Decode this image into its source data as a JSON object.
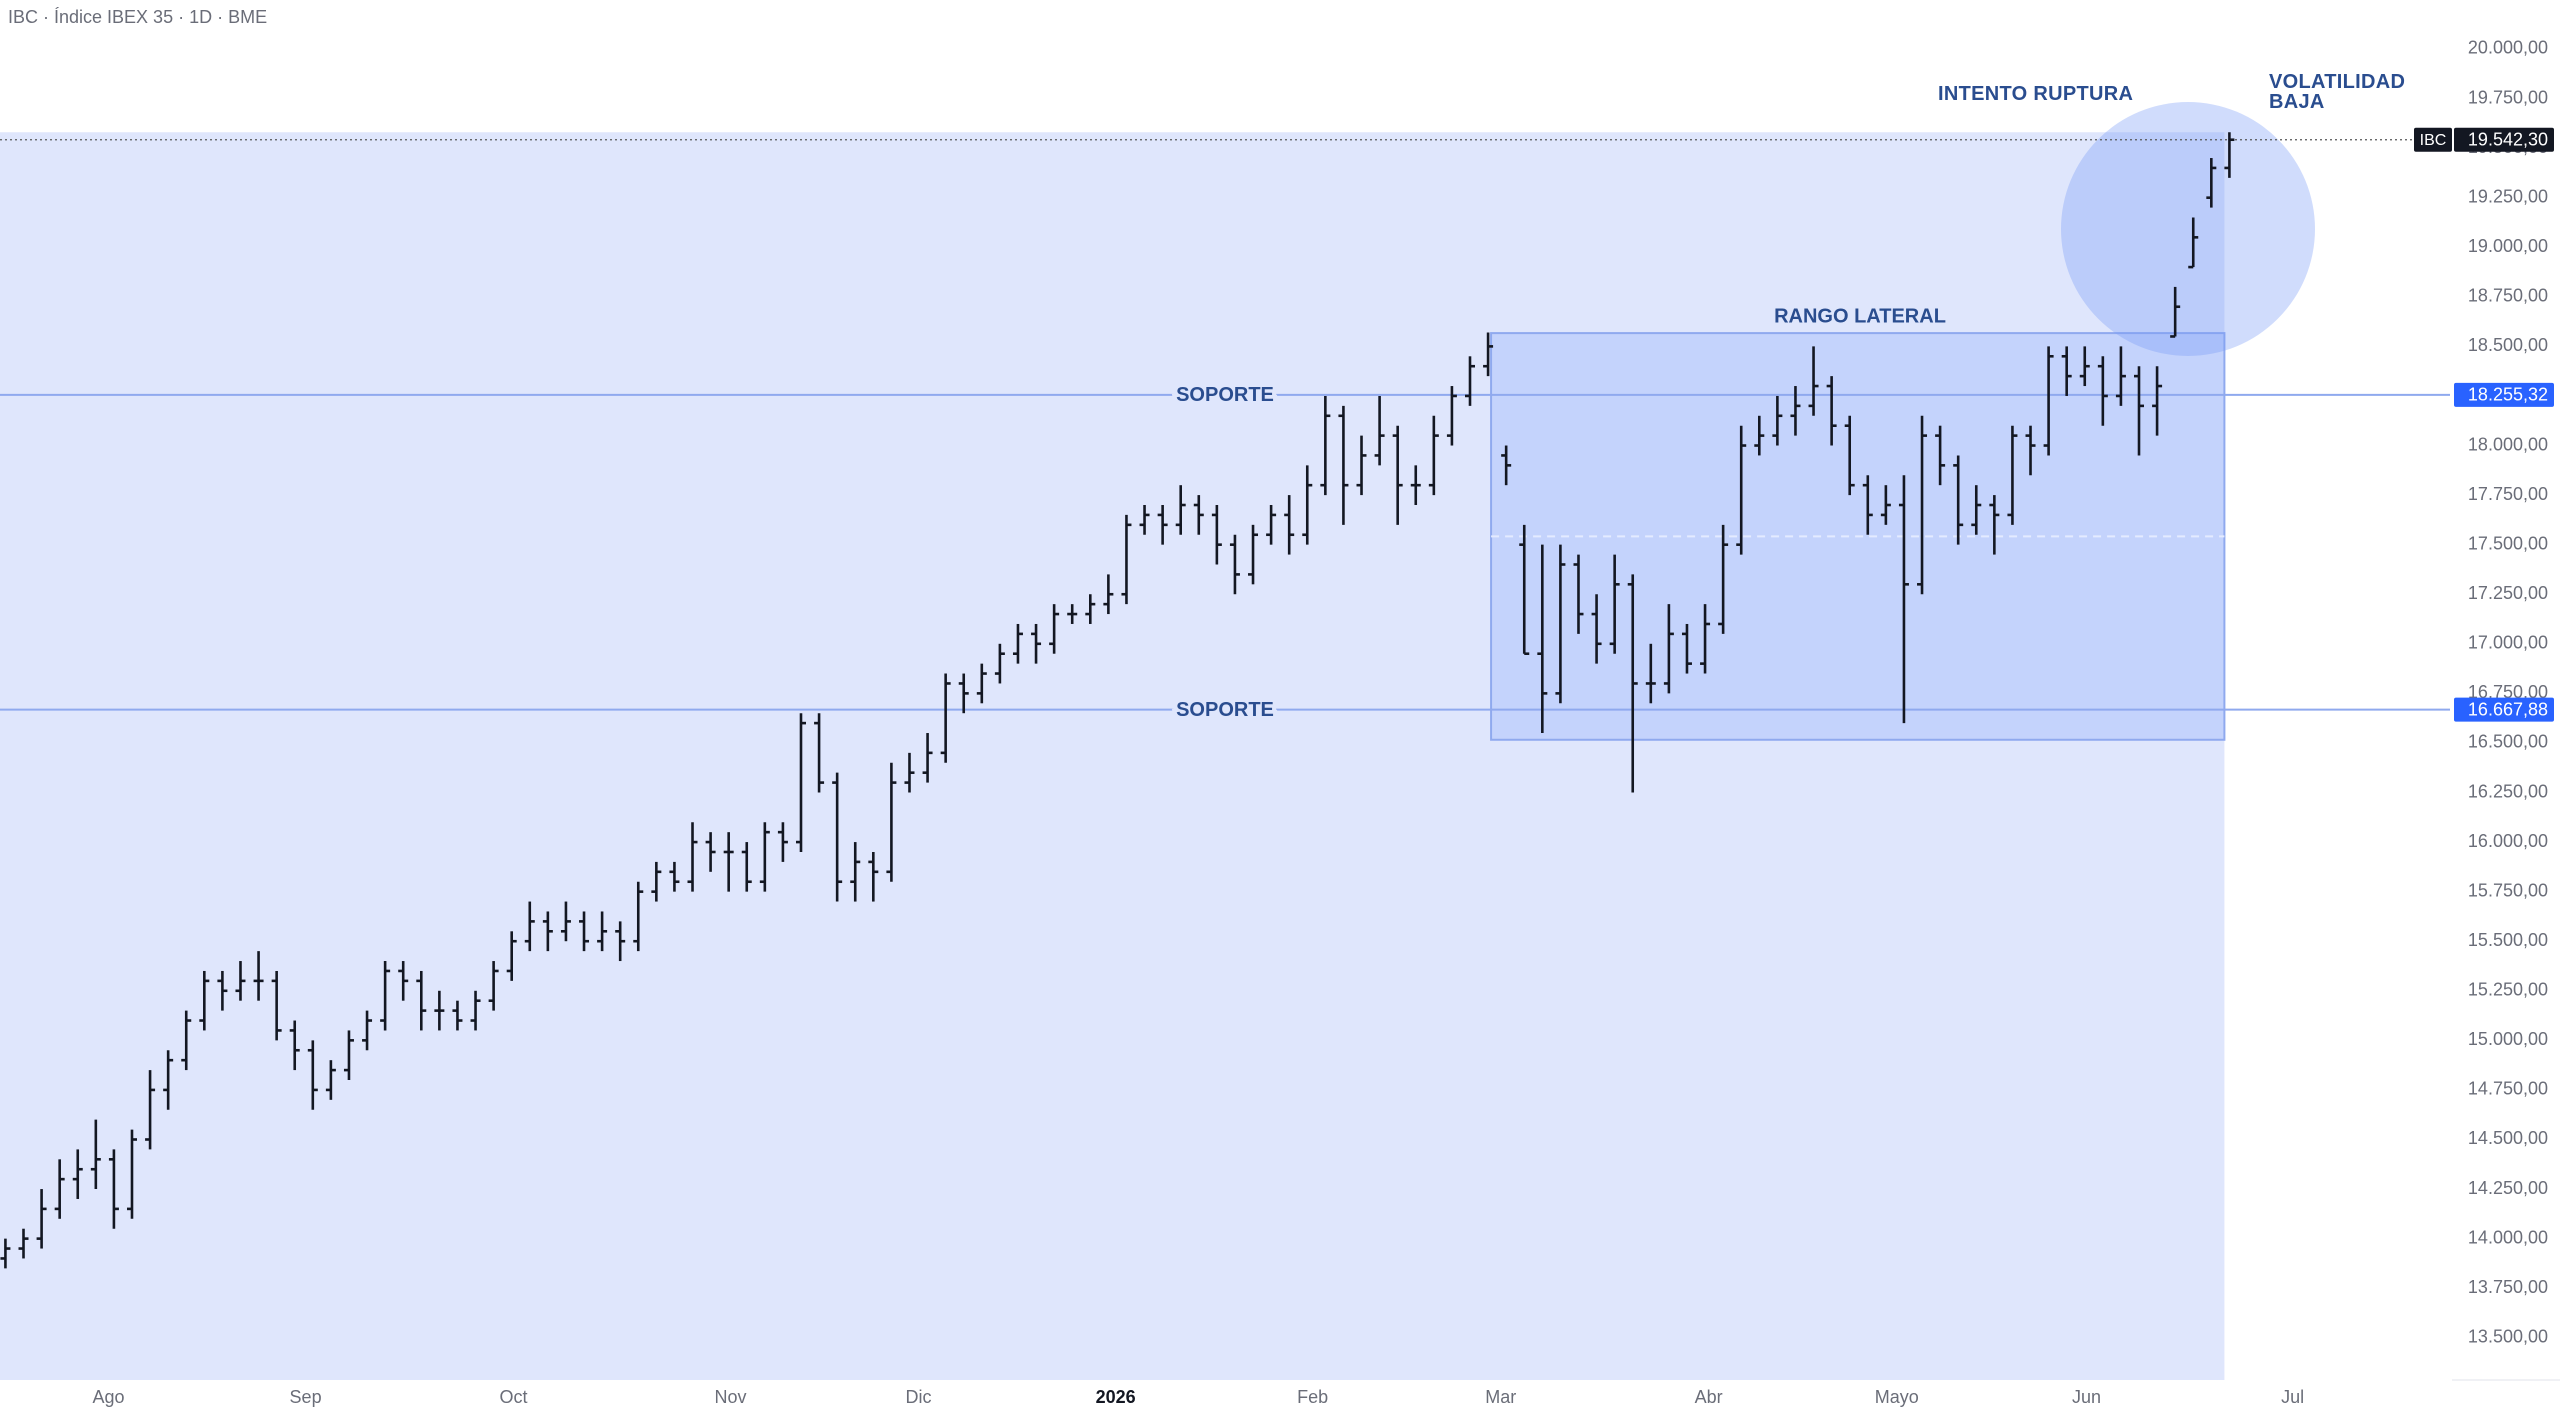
{
  "chart_data": {
    "type": "ohlc",
    "title": "IBC · Índice IBEX 35 · 1D · BME",
    "symbol": "IBC",
    "xlim": [
      -0.3,
      135.2
    ],
    "xticks": [
      {
        "value": 5.7,
        "label": "Ago"
      },
      {
        "value": 16.6,
        "label": "Sep"
      },
      {
        "value": 28.1,
        "label": "Oct"
      },
      {
        "value": 40.1,
        "label": "Nov"
      },
      {
        "value": 50.5,
        "label": "Dic"
      },
      {
        "value": 61.4,
        "label": "2026"
      },
      {
        "value": 72.3,
        "label": "Feb"
      },
      {
        "value": 82.7,
        "label": "Mar"
      },
      {
        "value": 94.2,
        "label": "Abr"
      },
      {
        "value": 104.6,
        "label": "Mayo"
      },
      {
        "value": 115.1,
        "label": "Jun"
      },
      {
        "value": 126.5,
        "label": "Jul"
      }
    ],
    "ylim": [
      13287,
      20247
    ],
    "yticks": [
      {
        "value": 13500,
        "label": "13.500,00"
      },
      {
        "value": 13750,
        "label": "13.750,00"
      },
      {
        "value": 14000,
        "label": "14.000,00"
      },
      {
        "value": 14250,
        "label": "14.250,00"
      },
      {
        "value": 14500,
        "label": "14.500,00"
      },
      {
        "value": 14750,
        "label": "14.750,00"
      },
      {
        "value": 15000,
        "label": "15.000,00"
      },
      {
        "value": 15250,
        "label": "15.250,00"
      },
      {
        "value": 15500,
        "label": "15.500,00"
      },
      {
        "value": 15750,
        "label": "15.750,00"
      },
      {
        "value": 16000,
        "label": "16.000,00"
      },
      {
        "value": 16250,
        "label": "16.250,00"
      },
      {
        "value": 16500,
        "label": "16.500,00"
      },
      {
        "value": 16750,
        "label": "16.750,00"
      },
      {
        "value": 17000,
        "label": "17.000,00"
      },
      {
        "value": 17250,
        "label": "17.250,00"
      },
      {
        "value": 17500,
        "label": "17.500,00"
      },
      {
        "value": 17750,
        "label": "17.750,00"
      },
      {
        "value": 18000,
        "label": "18.000,00"
      },
      {
        "value": 18250,
        "label": "18.250,00"
      },
      {
        "value": 18500,
        "label": "18.500,00"
      },
      {
        "value": 18750,
        "label": "18.750,00"
      },
      {
        "value": 19000,
        "label": "19.000,00"
      },
      {
        "value": 19250,
        "label": "19.250,00"
      },
      {
        "value": 19500,
        "label": "19.500,00"
      },
      {
        "value": 19750,
        "label": "19.750,00"
      },
      {
        "value": 20000,
        "label": "20.000,00"
      }
    ],
    "color": "#131722",
    "ohlc": [
      [
        13900,
        14000,
        13850,
        13950
      ],
      [
        13950,
        14050,
        13900,
        14000
      ],
      [
        14000,
        14250,
        13950,
        14150
      ],
      [
        14150,
        14400,
        14100,
        14300
      ],
      [
        14300,
        14450,
        14200,
        14350
      ],
      [
        14350,
        14600,
        14250,
        14400
      ],
      [
        14400,
        14450,
        14050,
        14150
      ],
      [
        14150,
        14550,
        14100,
        14500
      ],
      [
        14500,
        14850,
        14450,
        14750
      ],
      [
        14750,
        14950,
        14650,
        14900
      ],
      [
        14900,
        15150,
        14850,
        15100
      ],
      [
        15100,
        15350,
        15050,
        15300
      ],
      [
        15300,
        15350,
        15150,
        15250
      ],
      [
        15250,
        15400,
        15200,
        15300
      ],
      [
        15300,
        15450,
        15200,
        15300
      ],
      [
        15300,
        15350,
        15000,
        15050
      ],
      [
        15050,
        15100,
        14850,
        14950
      ],
      [
        14950,
        15000,
        14650,
        14750
      ],
      [
        14750,
        14900,
        14700,
        14850
      ],
      [
        14850,
        15050,
        14800,
        15000
      ],
      [
        15000,
        15150,
        14950,
        15100
      ],
      [
        15100,
        15400,
        15050,
        15350
      ],
      [
        15350,
        15400,
        15200,
        15300
      ],
      [
        15300,
        15350,
        15050,
        15150
      ],
      [
        15150,
        15250,
        15050,
        15150
      ],
      [
        15150,
        15200,
        15050,
        15100
      ],
      [
        15100,
        15250,
        15050,
        15200
      ],
      [
        15200,
        15400,
        15150,
        15350
      ],
      [
        15350,
        15550,
        15300,
        15500
      ],
      [
        15500,
        15700,
        15450,
        15600
      ],
      [
        15600,
        15650,
        15450,
        15550
      ],
      [
        15550,
        15700,
        15500,
        15600
      ],
      [
        15600,
        15650,
        15450,
        15500
      ],
      [
        15500,
        15650,
        15450,
        15550
      ],
      [
        15550,
        15600,
        15400,
        15500
      ],
      [
        15500,
        15800,
        15450,
        15750
      ],
      [
        15750,
        15900,
        15700,
        15850
      ],
      [
        15850,
        15900,
        15750,
        15800
      ],
      [
        15800,
        16100,
        15750,
        16000
      ],
      [
        16000,
        16050,
        15850,
        15950
      ],
      [
        15950,
        16050,
        15750,
        15950
      ],
      [
        15950,
        16000,
        15750,
        15800
      ],
      [
        15800,
        16100,
        15750,
        16050
      ],
      [
        16050,
        16100,
        15900,
        16000
      ],
      [
        16000,
        16650,
        15950,
        16600
      ],
      [
        16600,
        16650,
        16250,
        16300
      ],
      [
        16300,
        16350,
        15700,
        15800
      ],
      [
        15800,
        16000,
        15700,
        15900
      ],
      [
        15900,
        15950,
        15700,
        15850
      ],
      [
        15850,
        16400,
        15800,
        16300
      ],
      [
        16300,
        16450,
        16250,
        16350
      ],
      [
        16350,
        16550,
        16300,
        16450
      ],
      [
        16450,
        16850,
        16400,
        16800
      ],
      [
        16800,
        16850,
        16650,
        16750
      ],
      [
        16750,
        16900,
        16700,
        16850
      ],
      [
        16850,
        17000,
        16800,
        16950
      ],
      [
        16950,
        17100,
        16900,
        17050
      ],
      [
        17050,
        17100,
        16900,
        17000
      ],
      [
        17000,
        17200,
        16950,
        17150
      ],
      [
        17150,
        17200,
        17100,
        17150
      ],
      [
        17150,
        17250,
        17100,
        17200
      ],
      [
        17200,
        17350,
        17150,
        17250
      ],
      [
        17250,
        17650,
        17200,
        17600
      ],
      [
        17600,
        17700,
        17550,
        17650
      ],
      [
        17650,
        17700,
        17500,
        17600
      ],
      [
        17600,
        17800,
        17550,
        17700
      ],
      [
        17700,
        17750,
        17550,
        17650
      ],
      [
        17650,
        17700,
        17400,
        17500
      ],
      [
        17500,
        17550,
        17250,
        17350
      ],
      [
        17350,
        17600,
        17300,
        17550
      ],
      [
        17550,
        17700,
        17500,
        17650
      ],
      [
        17650,
        17750,
        17450,
        17550
      ],
      [
        17550,
        17900,
        17500,
        17800
      ],
      [
        17800,
        18250,
        17750,
        18150
      ],
      [
        18150,
        18200,
        17600,
        17800
      ],
      [
        17800,
        18050,
        17750,
        17950
      ],
      [
        17950,
        18250,
        17900,
        18050
      ],
      [
        18050,
        18100,
        17600,
        17800
      ],
      [
        17800,
        17900,
        17700,
        17800
      ],
      [
        17800,
        18150,
        17750,
        18050
      ],
      [
        18050,
        18300,
        18000,
        18250
      ],
      [
        18250,
        18450,
        18200,
        18400
      ],
      [
        18400,
        18570,
        18350,
        18500
      ],
      [
        17950,
        18000,
        17800,
        17900
      ],
      [
        17500,
        17600,
        16950,
        16950
      ],
      [
        16950,
        17500,
        16550,
        16750
      ],
      [
        16750,
        17500,
        16700,
        17400
      ],
      [
        17400,
        17450,
        17050,
        17150
      ],
      [
        17150,
        17250,
        16900,
        17000
      ],
      [
        17000,
        17450,
        16950,
        17300
      ],
      [
        17300,
        17350,
        16250,
        16800
      ],
      [
        16800,
        17000,
        16700,
        16800
      ],
      [
        16800,
        17200,
        16750,
        17050
      ],
      [
        17050,
        17100,
        16850,
        16900
      ],
      [
        16900,
        17200,
        16850,
        17100
      ],
      [
        17100,
        17600,
        17050,
        17500
      ],
      [
        17500,
        18100,
        17450,
        18000
      ],
      [
        18000,
        18150,
        17950,
        18050
      ],
      [
        18050,
        18250,
        18000,
        18150
      ],
      [
        18150,
        18300,
        18050,
        18200
      ],
      [
        18200,
        18500,
        18150,
        18300
      ],
      [
        18300,
        18350,
        18000,
        18100
      ],
      [
        18100,
        18150,
        17750,
        17800
      ],
      [
        17800,
        17850,
        17550,
        17650
      ],
      [
        17650,
        17800,
        17600,
        17700
      ],
      [
        17700,
        17850,
        16600,
        17300
      ],
      [
        17300,
        18150,
        17250,
        18050
      ],
      [
        18050,
        18100,
        17800,
        17900
      ],
      [
        17900,
        17950,
        17500,
        17600
      ],
      [
        17600,
        17800,
        17550,
        17700
      ],
      [
        17700,
        17750,
        17450,
        17650
      ],
      [
        17650,
        18100,
        17600,
        18050
      ],
      [
        18050,
        18100,
        17850,
        18000
      ],
      [
        18000,
        18500,
        17950,
        18450
      ],
      [
        18450,
        18500,
        18250,
        18350
      ],
      [
        18350,
        18500,
        18300,
        18400
      ],
      [
        18400,
        18450,
        18100,
        18250
      ],
      [
        18250,
        18500,
        18200,
        18350
      ],
      [
        18350,
        18400,
        17950,
        18200
      ],
      [
        18200,
        18400,
        18050,
        18300
      ],
      [
        18550,
        18800,
        18550,
        18700
      ],
      [
        18900,
        19150,
        18900,
        19050
      ],
      [
        19250,
        19450,
        19200,
        19400
      ],
      [
        19400,
        19580,
        19350,
        19542.3
      ]
    ],
    "last_price": {
      "value": 19542.3,
      "label": "19.542,30"
    },
    "levels": [
      {
        "name": "SOPORTE",
        "value": 18255.32,
        "label": "18.255,32"
      },
      {
        "name": "SOPORTE",
        "value": 16667.88,
        "label": "16.667,88"
      }
    ],
    "range_box": {
      "label": "RANGO LATERAL",
      "low": 16516,
      "high": 18567
    },
    "annotations": [
      "INTENTO RUPTURA",
      "VOLATILIDAD BAJA"
    ]
  }
}
